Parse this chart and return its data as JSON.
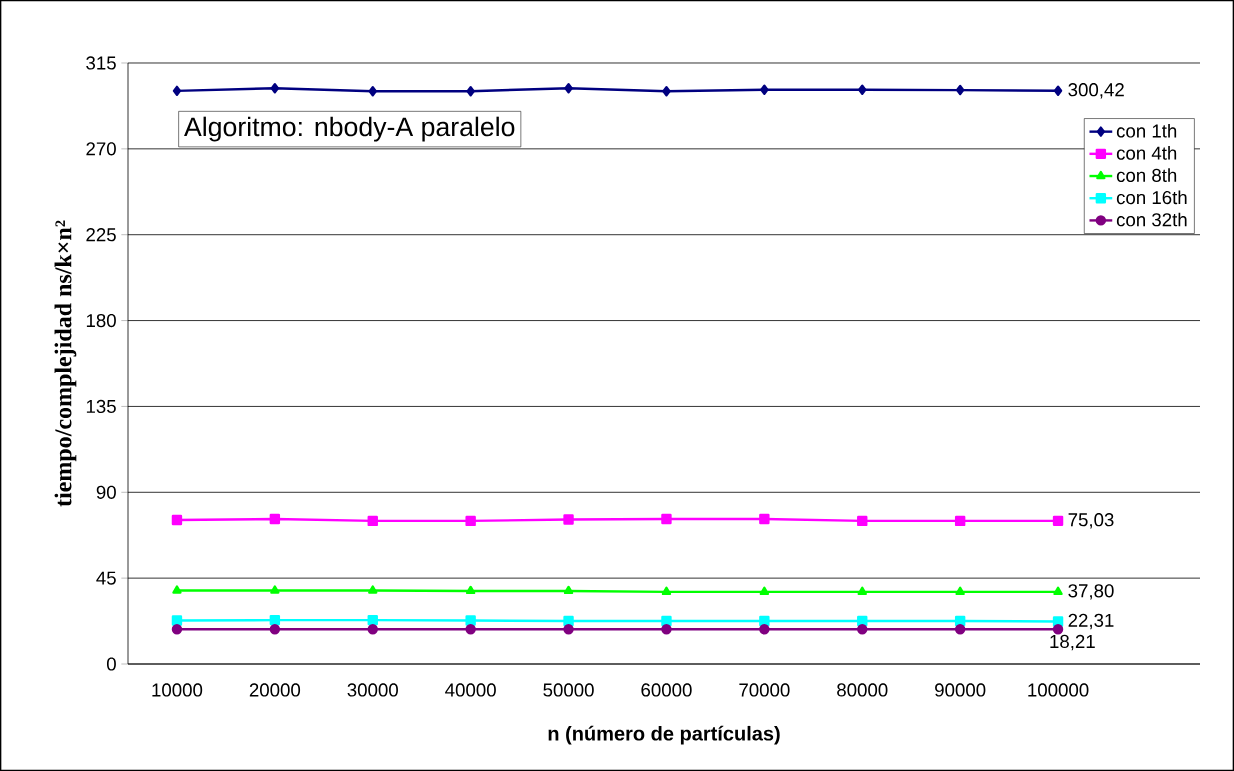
{
  "chart_data": {
    "type": "line",
    "xlabel": "n (número de partículas)",
    "ylabel": "tiempo/complejidad ns/k×n²",
    "annotations": [
      "Algoritmo: nbody-A paralelo"
    ],
    "categories": [
      "10000",
      "20000",
      "30000",
      "40000",
      "50000",
      "60000",
      "70000",
      "80000",
      "90000",
      "100000"
    ],
    "ylim": [
      0,
      315
    ],
    "yticks": [
      0,
      45,
      90,
      135,
      180,
      225,
      270,
      315
    ],
    "grid": "y",
    "legend": "right",
    "line_style": "solid",
    "series": [
      {
        "name": "con 1th",
        "color": "#000080",
        "marker": "diamond",
        "values": [
          300.4,
          301.8,
          300.2,
          300.2,
          301.8,
          300.2,
          301,
          301,
          300.8,
          300.42
        ],
        "value_labels": [
          null,
          null,
          null,
          null,
          null,
          null,
          null,
          null,
          null,
          "300,42"
        ]
      },
      {
        "name": "con 4th",
        "color": "#ff00ff",
        "marker": "square",
        "values": [
          75.5,
          76,
          75,
          75,
          75.7,
          76,
          76,
          75,
          75,
          75.03
        ],
        "value_labels": [
          null,
          null,
          null,
          null,
          null,
          null,
          null,
          null,
          null,
          "75,03"
        ]
      },
      {
        "name": "con 8th",
        "color": "#00ff00",
        "marker": "triangle",
        "values": [
          38.5,
          38.5,
          38.5,
          38.3,
          38.3,
          37.8,
          37.8,
          37.8,
          37.8,
          37.8
        ],
        "value_labels": [
          null,
          null,
          null,
          null,
          null,
          null,
          null,
          null,
          null,
          "37,80"
        ]
      },
      {
        "name": "con 16th",
        "color": "#00ffff",
        "marker": "square",
        "values": [
          22.8,
          23,
          23,
          22.8,
          22.5,
          22.5,
          22.5,
          22.5,
          22.5,
          22.31
        ],
        "value_labels": [
          null,
          null,
          null,
          null,
          null,
          null,
          null,
          null,
          null,
          "22,31"
        ]
      },
      {
        "name": "con 32th",
        "color": "#800080",
        "marker": "circle",
        "values": [
          18.2,
          18.2,
          18.2,
          18.2,
          18.2,
          18.2,
          18.2,
          18.2,
          18.2,
          18.21
        ],
        "value_labels": [
          null,
          null,
          null,
          null,
          null,
          null,
          null,
          null,
          null,
          "18,21"
        ]
      }
    ]
  }
}
